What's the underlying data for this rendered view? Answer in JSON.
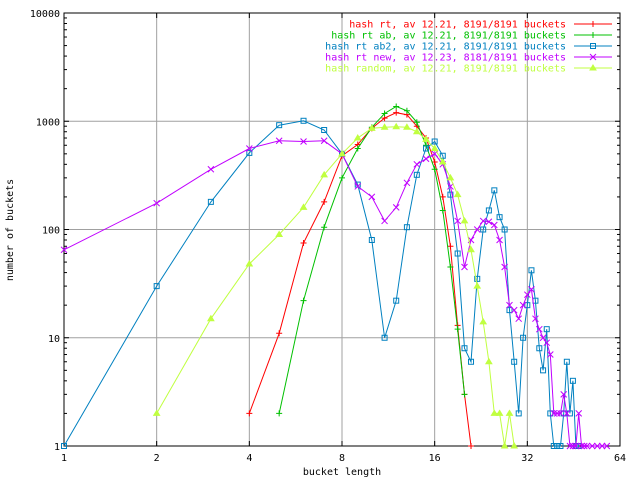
{
  "chart_data": {
    "type": "line",
    "title": "",
    "xlabel": "bucket length",
    "ylabel": "number of buckets",
    "x_scale": "log2",
    "y_scale": "log10",
    "xlim": [
      1,
      64
    ],
    "ylim": [
      1,
      10000
    ],
    "x_ticks": [
      1,
      2,
      4,
      8,
      16,
      32,
      64
    ],
    "x_tick_labels": [
      "1",
      "2",
      "4",
      "8",
      "16",
      "32",
      "64"
    ],
    "y_ticks": [
      1,
      10,
      100,
      1000,
      10000
    ],
    "y_tick_labels": [
      "1",
      "10",
      "100",
      "1000",
      "10000"
    ],
    "grid": true,
    "legend_position": "top-right",
    "series": [
      {
        "name": "hash rt, av 12.21, 8191/8191 buckets",
        "color": "#ff0000",
        "marker": "plus",
        "x": [
          4,
          5,
          6,
          7,
          8,
          9,
          10,
          11,
          12,
          13,
          14,
          15,
          16,
          17,
          18,
          19,
          20,
          21
        ],
        "y": [
          2,
          11,
          75,
          180,
          480,
          610,
          860,
          1070,
          1200,
          1150,
          900,
          700,
          420,
          200,
          70,
          13,
          3,
          1
        ]
      },
      {
        "name": "hash rt ab, av 12.21, 8191/8191 buckets",
        "color": "#00c000",
        "marker": "plus",
        "x": [
          5,
          6,
          7,
          8,
          9,
          10,
          11,
          12,
          13,
          14,
          15,
          16,
          17,
          18,
          19,
          20
        ],
        "y": [
          2,
          22,
          105,
          300,
          560,
          880,
          1180,
          1370,
          1250,
          980,
          600,
          360,
          150,
          45,
          12,
          3
        ]
      },
      {
        "name": "hash rt ab2, av 12.21, 8191/8191 buckets",
        "color": "#0080c0",
        "marker": "square",
        "x": [
          1,
          2,
          3,
          4,
          5,
          6,
          7,
          8,
          9,
          10,
          11,
          12,
          13,
          14,
          15,
          16,
          17,
          18,
          19,
          20,
          21,
          22,
          23,
          24,
          25,
          26,
          27,
          28,
          29,
          30,
          31,
          32,
          33,
          34,
          35,
          36,
          37,
          38,
          39,
          40,
          41,
          42,
          43,
          44,
          45,
          46,
          47
        ],
        "y": [
          1,
          30,
          180,
          510,
          920,
          1010,
          830,
          500,
          260,
          80,
          10,
          22,
          105,
          320,
          560,
          650,
          480,
          210,
          60,
          8,
          6,
          35,
          100,
          150,
          230,
          130,
          100,
          18,
          6,
          2,
          10,
          20,
          42,
          22,
          8,
          5,
          12,
          2,
          1,
          1,
          1,
          2,
          6,
          2,
          4,
          1,
          1
        ]
      },
      {
        "name": "hash rt new, av 12.23, 8181/8191 buckets",
        "color": "#c000ff",
        "marker": "cross",
        "x": [
          1,
          2,
          3,
          4,
          5,
          6,
          7,
          8,
          9,
          10,
          11,
          12,
          13,
          14,
          15,
          16,
          17,
          18,
          19,
          20,
          21,
          22,
          23,
          24,
          25,
          26,
          27,
          28,
          29,
          30,
          31,
          32,
          33,
          34,
          35,
          36,
          37,
          38,
          39,
          40,
          41,
          42,
          43,
          44,
          45,
          46,
          47,
          48,
          49,
          50,
          52,
          54,
          56,
          58
        ],
        "y": [
          65,
          175,
          360,
          560,
          660,
          650,
          660,
          500,
          250,
          200,
          120,
          160,
          270,
          400,
          450,
          500,
          400,
          250,
          120,
          45,
          80,
          100,
          120,
          118,
          110,
          80,
          45,
          20,
          18,
          15,
          20,
          25,
          28,
          15,
          12,
          10,
          9,
          7,
          2,
          2,
          2,
          3,
          2,
          1,
          1,
          1,
          2,
          1,
          1,
          1,
          1,
          1,
          1,
          1
        ]
      },
      {
        "name": "hash random, av 12.21, 8191/8191 buckets",
        "color": "#c0ff40",
        "marker": "triangle",
        "x": [
          2,
          3,
          4,
          5,
          6,
          7,
          8,
          9,
          10,
          11,
          12,
          13,
          14,
          15,
          16,
          17,
          18,
          19,
          20,
          21,
          22,
          23,
          24,
          25,
          26,
          27,
          28,
          29
        ],
        "y": [
          2,
          15,
          48,
          90,
          160,
          320,
          500,
          700,
          860,
          880,
          890,
          880,
          800,
          680,
          560,
          420,
          300,
          210,
          120,
          65,
          30,
          14,
          6,
          2,
          2,
          1,
          2,
          1
        ]
      }
    ]
  }
}
